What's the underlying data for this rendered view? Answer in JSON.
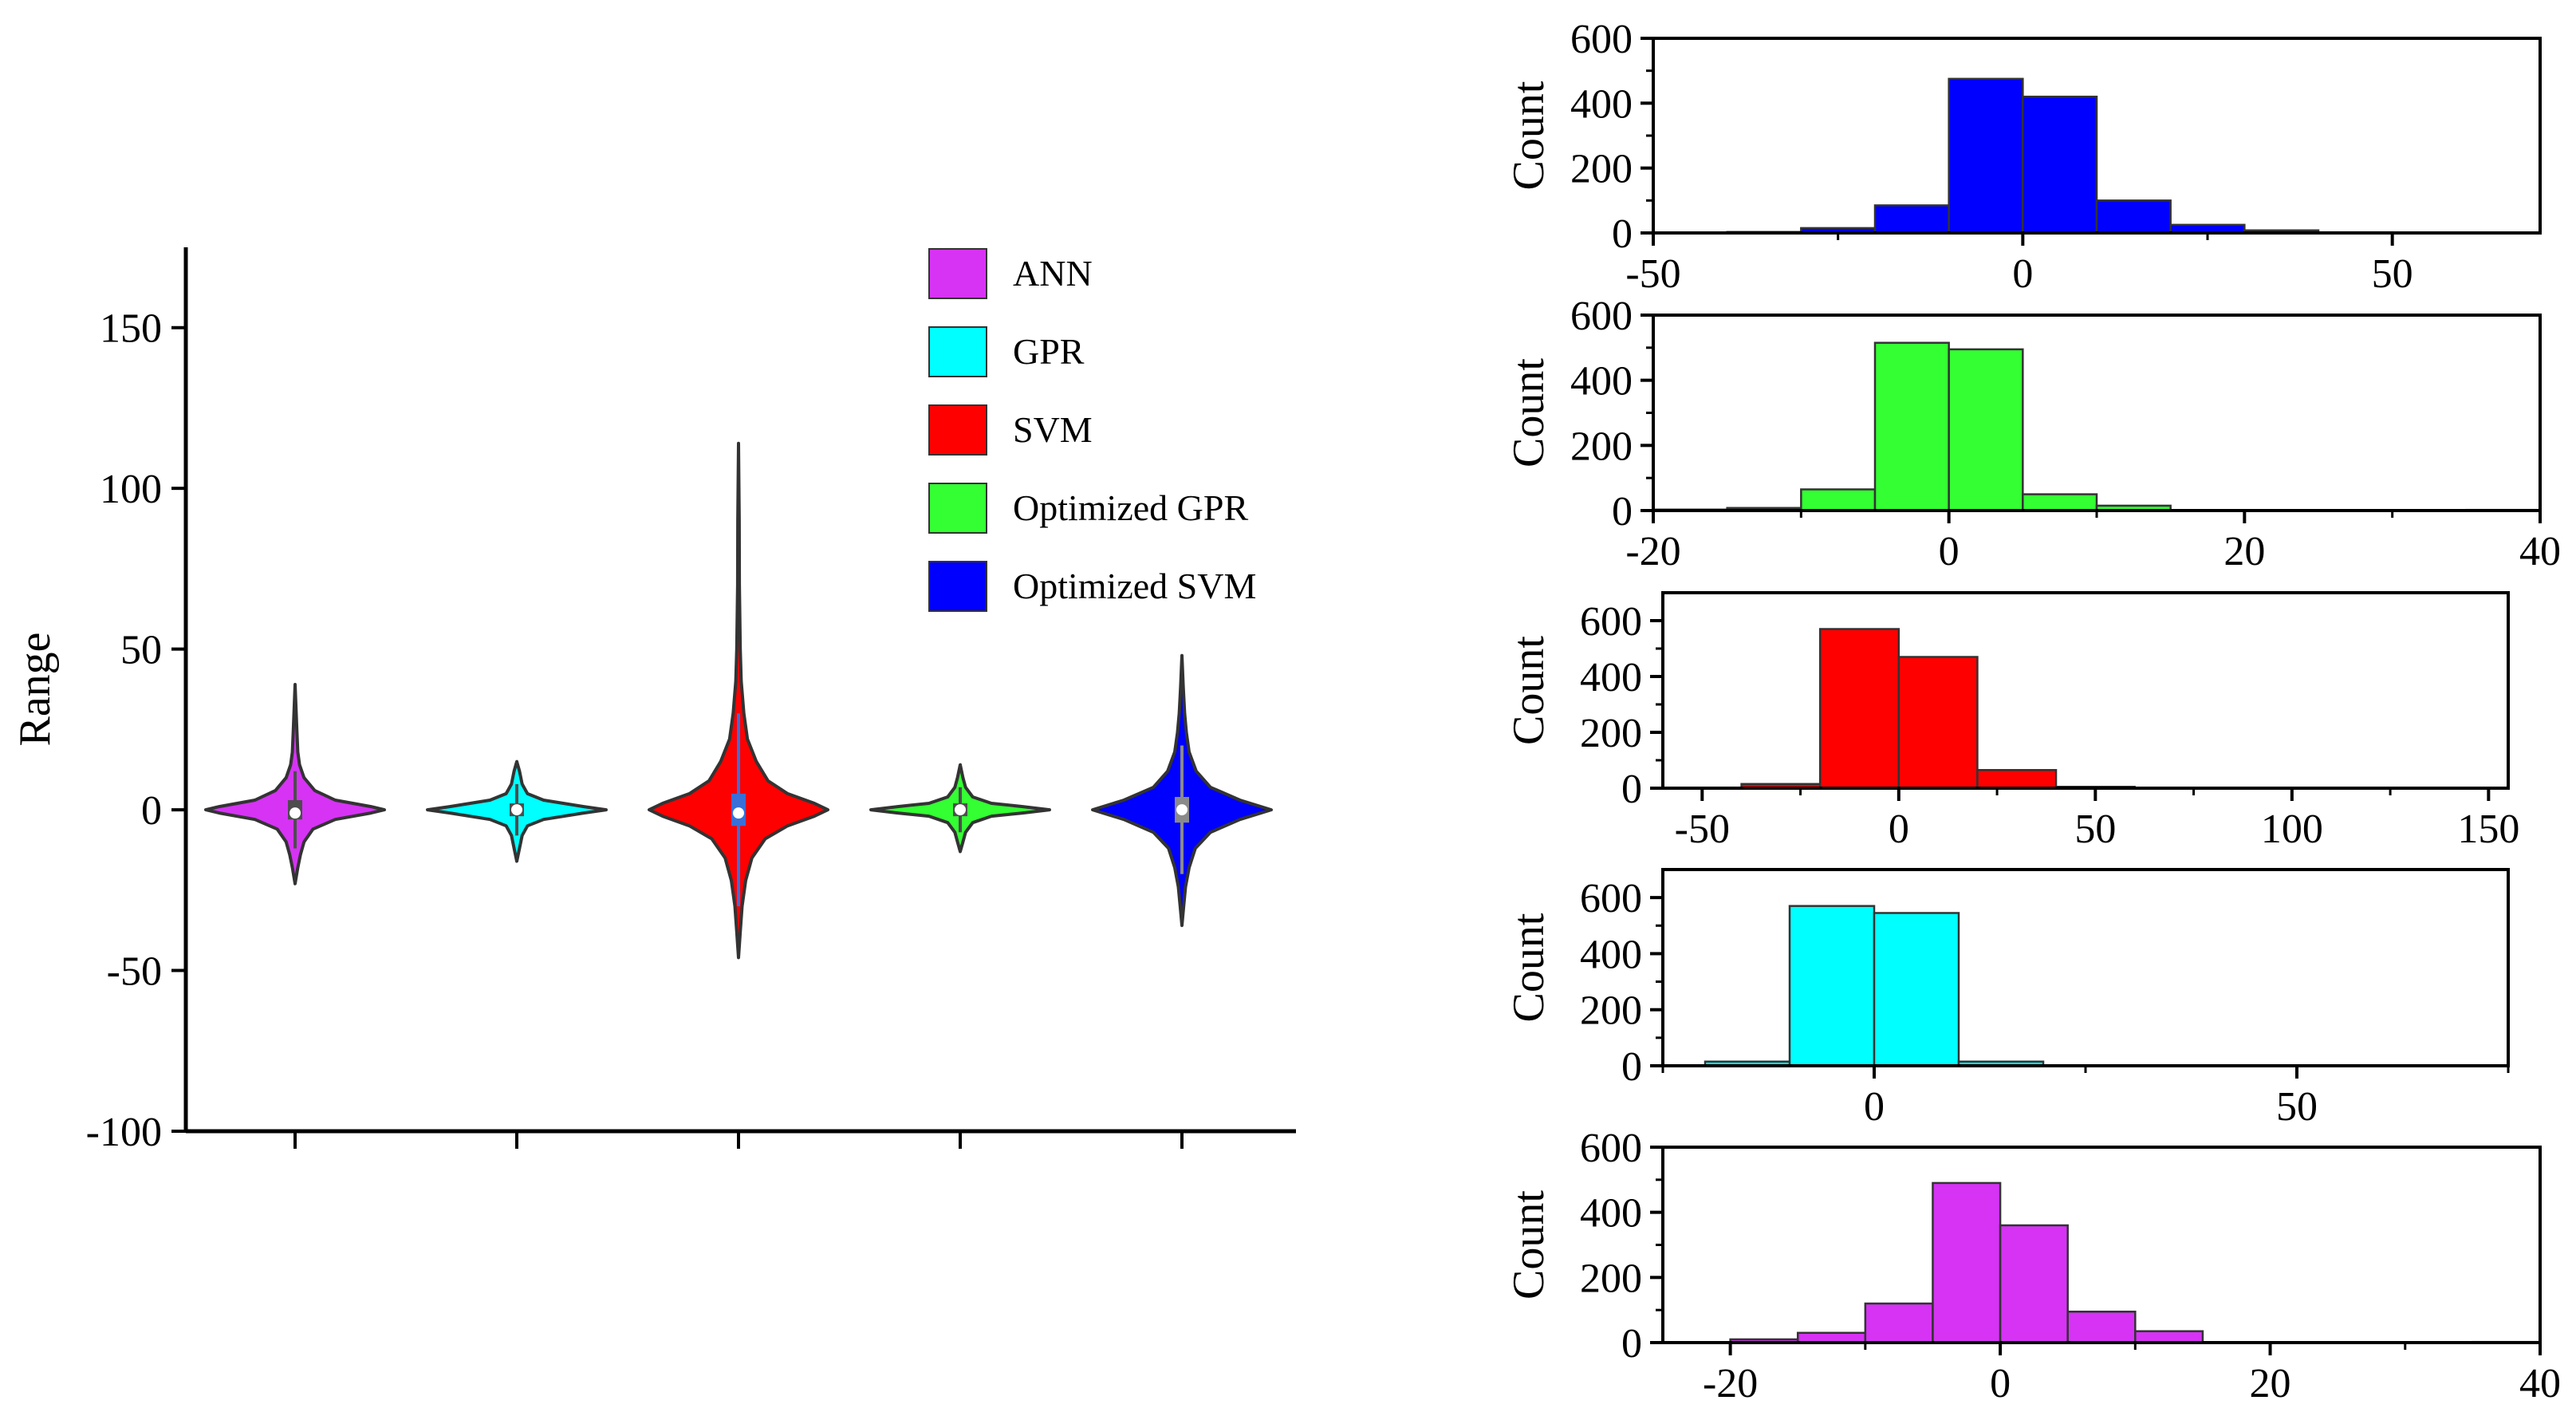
{
  "figure": {
    "background": "#ffffff"
  },
  "chart_data": [
    {
      "type": "violin",
      "title": "",
      "ylabel": "Range",
      "xlabel": "",
      "ylim": [
        -100,
        175
      ],
      "yticks": [
        -100,
        -50,
        0,
        50,
        100,
        150
      ],
      "ytick_labels": [
        "-100",
        "-50",
        "0",
        "50",
        "100",
        "150"
      ],
      "legend_position": "top-right",
      "series": [
        {
          "name": "ANN",
          "color": "#d633f5",
          "box_color": "#4d4d4d",
          "min": -23,
          "max": 39,
          "q1": -3,
          "q3": 3,
          "median": -1,
          "whisker_low": -12,
          "whisker_high": 12,
          "widths": [
            [
              -23,
              0
            ],
            [
              -18,
              0.03
            ],
            [
              -14,
              0.06
            ],
            [
              -10,
              0.1
            ],
            [
              -6,
              0.2
            ],
            [
              -3,
              0.45
            ],
            [
              -1,
              0.85
            ],
            [
              0,
              1
            ],
            [
              1,
              0.85
            ],
            [
              3,
              0.45
            ],
            [
              6,
              0.22
            ],
            [
              10,
              0.1
            ],
            [
              14,
              0.05
            ],
            [
              18,
              0.03
            ],
            [
              25,
              0.02
            ],
            [
              32,
              0.01
            ],
            [
              39,
              0
            ]
          ]
        },
        {
          "name": "GPR",
          "color": "#00ffff",
          "box_color": "#4d4d4d",
          "min": -16,
          "max": 15,
          "q1": -2,
          "q3": 2,
          "median": 0,
          "whisker_low": -8,
          "whisker_high": 8,
          "widths": [
            [
              -16,
              0
            ],
            [
              -12,
              0.03
            ],
            [
              -8,
              0.06
            ],
            [
              -5,
              0.12
            ],
            [
              -3,
              0.3
            ],
            [
              -1,
              0.75
            ],
            [
              0,
              1
            ],
            [
              1,
              0.75
            ],
            [
              3,
              0.3
            ],
            [
              5,
              0.12
            ],
            [
              8,
              0.06
            ],
            [
              12,
              0.03
            ],
            [
              15,
              0
            ]
          ]
        },
        {
          "name": "SVM",
          "color": "#ff0000",
          "box_color": "#3a6fd8",
          "min": -46,
          "max": 114,
          "q1": -5,
          "q3": 5,
          "median": -1,
          "whisker_low": -30,
          "whisker_high": 30,
          "widths": [
            [
              -46,
              0
            ],
            [
              -38,
              0.02
            ],
            [
              -30,
              0.04
            ],
            [
              -22,
              0.08
            ],
            [
              -15,
              0.15
            ],
            [
              -9,
              0.3
            ],
            [
              -5,
              0.55
            ],
            [
              -2,
              0.85
            ],
            [
              0,
              1
            ],
            [
              2,
              0.85
            ],
            [
              5,
              0.55
            ],
            [
              9,
              0.33
            ],
            [
              15,
              0.2
            ],
            [
              22,
              0.1
            ],
            [
              30,
              0.06
            ],
            [
              40,
              0.03
            ],
            [
              50,
              0.02
            ],
            [
              70,
              0.01
            ],
            [
              90,
              0.008
            ],
            [
              114,
              0
            ]
          ]
        },
        {
          "name": "Optimized GPR",
          "color": "#33ff33",
          "box_color": "#4d4d4d",
          "min": -13,
          "max": 14,
          "q1": -2,
          "q3": 2,
          "median": 0,
          "whisker_low": -7,
          "whisker_high": 7,
          "widths": [
            [
              -13,
              0
            ],
            [
              -10,
              0.03
            ],
            [
              -7,
              0.06
            ],
            [
              -4,
              0.14
            ],
            [
              -2,
              0.35
            ],
            [
              -1,
              0.7
            ],
            [
              0,
              1
            ],
            [
              1,
              0.7
            ],
            [
              2,
              0.35
            ],
            [
              4,
              0.14
            ],
            [
              7,
              0.06
            ],
            [
              10,
              0.03
            ],
            [
              14,
              0
            ]
          ]
        },
        {
          "name": "Optimized SVM",
          "color": "#0000ff",
          "box_color": "#8a8a8a",
          "min": -36,
          "max": 48,
          "q1": -4,
          "q3": 4,
          "median": 0,
          "whisker_low": -20,
          "whisker_high": 20,
          "widths": [
            [
              -36,
              0
            ],
            [
              -30,
              0.02
            ],
            [
              -24,
              0.04
            ],
            [
              -18,
              0.08
            ],
            [
              -12,
              0.15
            ],
            [
              -7,
              0.32
            ],
            [
              -3,
              0.65
            ],
            [
              0,
              1
            ],
            [
              3,
              0.65
            ],
            [
              7,
              0.32
            ],
            [
              12,
              0.16
            ],
            [
              18,
              0.08
            ],
            [
              24,
              0.05
            ],
            [
              30,
              0.03
            ],
            [
              38,
              0.015
            ],
            [
              48,
              0
            ]
          ]
        }
      ]
    },
    {
      "type": "bar",
      "title": "",
      "color": "#0000ff",
      "ylabel": "Count",
      "xlabel": "",
      "xlim": [
        -50,
        70
      ],
      "ylim": [
        0,
        600
      ],
      "xticks": [
        -50,
        0,
        50
      ],
      "xtick_labels": [
        "-50",
        "0",
        "50"
      ],
      "xminor": [
        -25,
        25
      ],
      "yticks": [
        0,
        200,
        400,
        600
      ],
      "ytick_labels": [
        "0",
        "200",
        "400",
        "600"
      ],
      "bin_edges": [
        -40,
        -30,
        -20,
        -10,
        0,
        10,
        20,
        30,
        40,
        50,
        60
      ],
      "counts": [
        3,
        15,
        85,
        475,
        420,
        100,
        25,
        8,
        2,
        1
      ]
    },
    {
      "type": "bar",
      "title": "",
      "color": "#33ff33",
      "ylabel": "Count",
      "xlabel": "",
      "xlim": [
        -20,
        40
      ],
      "ylim": [
        0,
        600
      ],
      "xticks": [
        -20,
        0,
        20,
        40
      ],
      "xtick_labels": [
        "-20",
        "0",
        "20",
        "40"
      ],
      "xminor": [
        -10,
        10,
        30
      ],
      "yticks": [
        0,
        200,
        400,
        600
      ],
      "ytick_labels": [
        "0",
        "200",
        "400",
        "600"
      ],
      "bin_edges": [
        -20,
        -15,
        -10,
        -5,
        0,
        5,
        10,
        15,
        20,
        25,
        30,
        35,
        40
      ],
      "counts": [
        3,
        8,
        65,
        515,
        495,
        50,
        15,
        0,
        0,
        0,
        0,
        2
      ]
    },
    {
      "type": "bar",
      "title": "",
      "color": "#ff0000",
      "ylabel": "Count",
      "xlabel": "",
      "xlim": [
        -60,
        155
      ],
      "ylim": [
        0,
        700
      ],
      "xticks": [
        -50,
        0,
        50,
        100,
        150
      ],
      "xtick_labels": [
        "-50",
        "0",
        "50",
        "100",
        "150"
      ],
      "xminor": [
        -25,
        25,
        75,
        125
      ],
      "yticks": [
        0,
        200,
        400,
        600
      ],
      "ytick_labels": [
        "0",
        "200",
        "400",
        "600"
      ],
      "bin_edges": [
        -40,
        -20,
        0,
        20,
        40,
        60,
        80,
        100,
        120
      ],
      "counts": [
        15,
        570,
        470,
        65,
        5,
        1,
        0,
        2
      ]
    },
    {
      "type": "bar",
      "title": "",
      "color": "#00ffff",
      "ylabel": "Count",
      "xlabel": "",
      "xlim": [
        -25,
        75
      ],
      "ylim": [
        0,
        700
      ],
      "xticks": [
        0,
        50
      ],
      "xtick_labels": [
        "0",
        "50"
      ],
      "xminor": [
        -25,
        25,
        75
      ],
      "yticks": [
        0,
        200,
        400,
        600
      ],
      "ytick_labels": [
        "0",
        "200",
        "400",
        "600"
      ],
      "bin_edges": [
        -20,
        -10,
        0,
        10,
        20,
        30
      ],
      "counts": [
        15,
        570,
        545,
        15,
        2
      ]
    },
    {
      "type": "bar",
      "title": "",
      "color": "#d633f5",
      "ylabel": "Count",
      "xlabel": "",
      "xlim": [
        -25,
        40
      ],
      "ylim": [
        0,
        600
      ],
      "xticks": [
        -20,
        0,
        20,
        40
      ],
      "xtick_labels": [
        "-20",
        "0",
        "20",
        "40"
      ],
      "xminor": [
        -10,
        10,
        30
      ],
      "yticks": [
        0,
        200,
        400,
        600
      ],
      "ytick_labels": [
        "0",
        "200",
        "400",
        "600"
      ],
      "bin_edges": [
        -20,
        -15,
        -10,
        -5,
        0,
        5,
        10,
        15,
        20,
        25,
        30,
        35,
        40
      ],
      "counts": [
        10,
        30,
        120,
        490,
        360,
        95,
        35,
        0,
        0,
        0,
        0,
        2
      ]
    }
  ]
}
